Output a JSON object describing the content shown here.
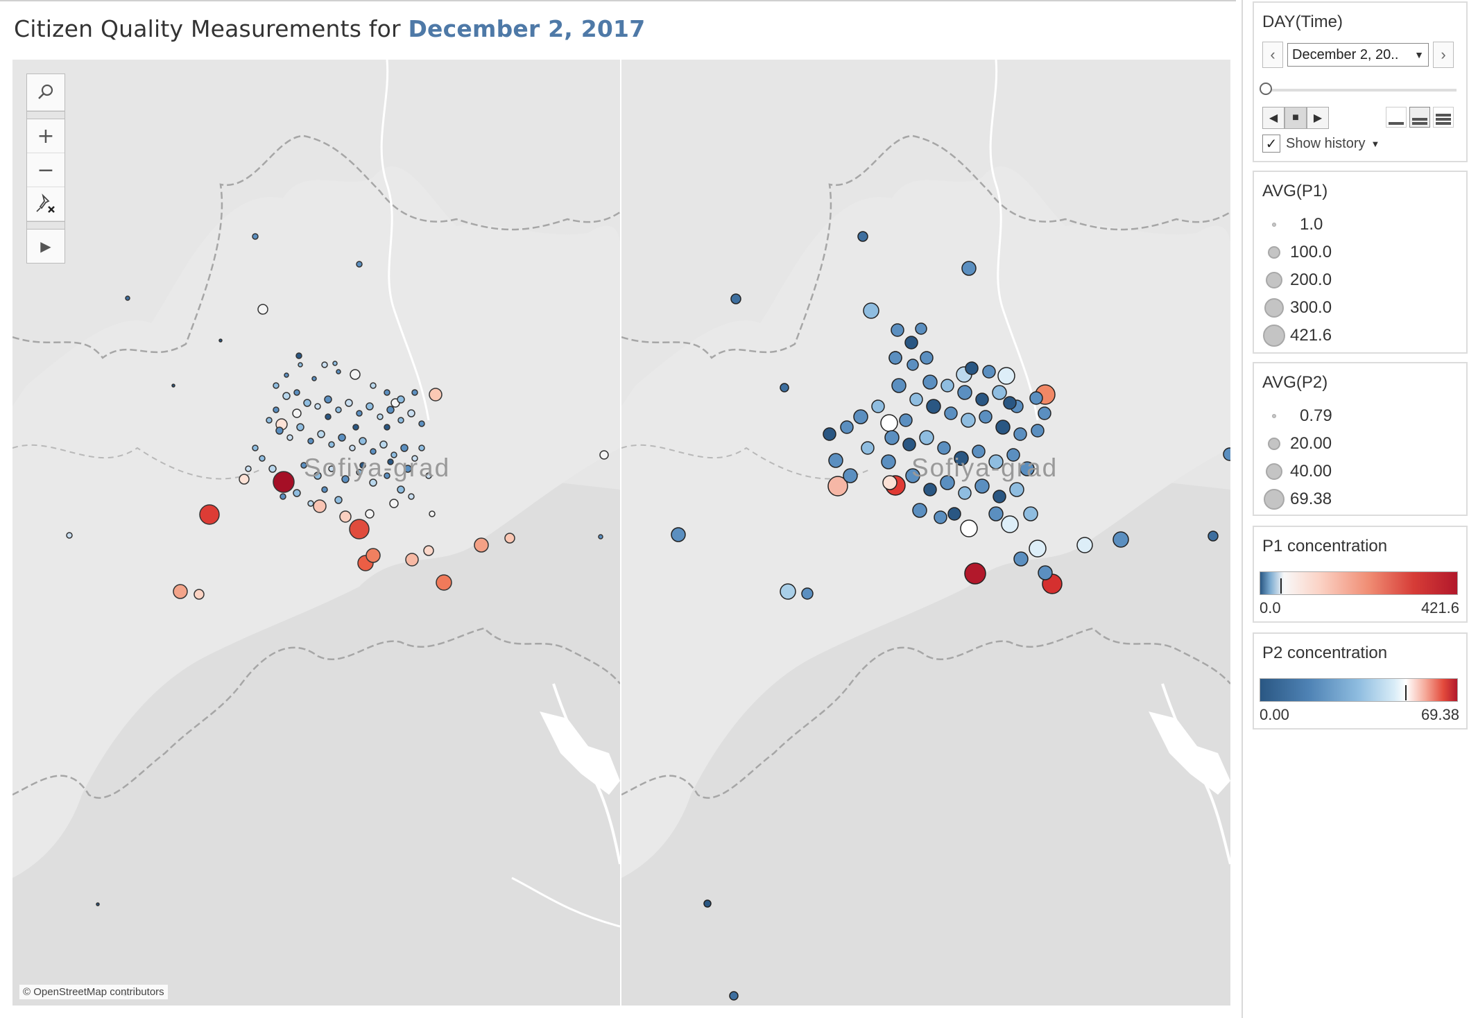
{
  "title": {
    "prefix": "Citizen Quality Measurements for",
    "date": "December 2, 2017"
  },
  "map": {
    "city_label_left": "Sofiya-grad",
    "city_label_right": "Sofiya-grad",
    "credit": "© OpenStreetMap contributors",
    "toolbar_icons": [
      "search-icon",
      "zoom-in-icon",
      "zoom-out-icon",
      "unpin-icon",
      "expand-icon"
    ]
  },
  "day_filter": {
    "title": "DAY(Time)",
    "selected": "December 2, 20..",
    "show_history_label": "Show history",
    "show_history_checked": true,
    "prev_icon": "chevron-left-icon",
    "next_icon": "chevron-right-icon"
  },
  "p1_size_legend": {
    "title": "AVG(P1)",
    "items": [
      "1.0",
      "100.0",
      "200.0",
      "300.0",
      "421.6"
    ]
  },
  "p2_size_legend": {
    "title": "AVG(P2)",
    "items": [
      "0.79",
      "20.00",
      "40.00",
      "69.38"
    ]
  },
  "p1_color_legend": {
    "title": "P1 concentration",
    "min": "0.0",
    "max": "421.6",
    "colors": [
      "#2a5783",
      "#f8f8f8",
      "#b2182b"
    ]
  },
  "p2_color_legend": {
    "title": "P2 concentration",
    "min": "0.00",
    "max": "69.38",
    "colors": [
      "#2a5783",
      "#ffffff",
      "#b2182b"
    ]
  }
}
